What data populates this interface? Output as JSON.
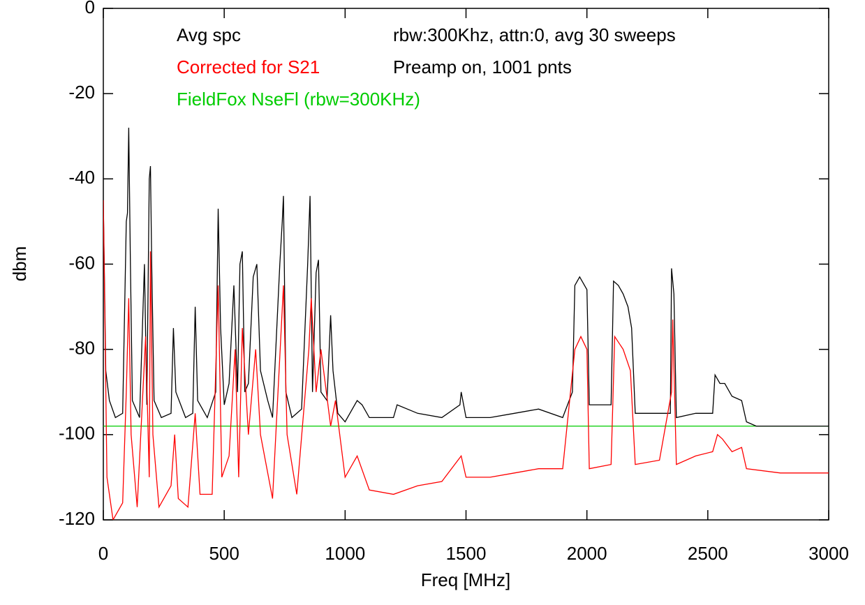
{
  "chart_data": {
    "type": "line",
    "xlabel": "Freq [MHz]",
    "ylabel": "dbm",
    "xlim": [
      0,
      3000
    ],
    "ylim": [
      -120,
      0
    ],
    "xticks": [
      0,
      500,
      1000,
      1500,
      2000,
      2500,
      3000
    ],
    "yticks": [
      -120,
      -100,
      -80,
      -60,
      -40,
      -20,
      0
    ],
    "annotations": [
      "rbw:300Khz, attn:0, avg 30 sweeps",
      "Preamp  on, 1001 pnts"
    ],
    "series": [
      {
        "name": "Avg spc",
        "color": "#000000",
        "x": [
          0,
          10,
          25,
          50,
          80,
          95,
          100,
          105,
          112,
          120,
          150,
          170,
          180,
          190,
          195,
          200,
          210,
          240,
          280,
          290,
          300,
          340,
          370,
          380,
          390,
          430,
          465,
          475,
          485,
          500,
          520,
          540,
          555,
          565,
          575,
          585,
          600,
          620,
          635,
          650,
          680,
          700,
          730,
          740,
          745,
          755,
          780,
          820,
          845,
          855,
          865,
          880,
          890,
          900,
          925,
          940,
          950,
          970,
          1000,
          1050,
          1070,
          1100,
          1200,
          1215,
          1300,
          1400,
          1475,
          1480,
          1500,
          1600,
          1700,
          1800,
          1900,
          1940,
          1950,
          1970,
          2000,
          2010,
          2100,
          2110,
          2130,
          2150,
          2170,
          2185,
          2200,
          2300,
          2345,
          2350,
          2360,
          2370,
          2450,
          2520,
          2530,
          2550,
          2570,
          2600,
          2640,
          2660,
          2700,
          3000
        ],
        "values": [
          -45,
          -85,
          -92,
          -96,
          -95,
          -50,
          -48,
          -28,
          -60,
          -92,
          -96,
          -60,
          -93,
          -40,
          -37,
          -60,
          -92,
          -96,
          -95,
          -75,
          -90,
          -96,
          -95,
          -70,
          -92,
          -96,
          -90,
          -47,
          -75,
          -93,
          -88,
          -65,
          -90,
          -60,
          -57,
          -90,
          -88,
          -63,
          -60,
          -85,
          -92,
          -96,
          -60,
          -50,
          -44,
          -90,
          -96,
          -94,
          -60,
          -44,
          -90,
          -62,
          -59,
          -90,
          -92,
          -72,
          -85,
          -95,
          -97,
          -92,
          -93,
          -96,
          -96,
          -93,
          -95,
          -96,
          -93,
          -90,
          -96,
          -96,
          -95,
          -94,
          -96,
          -90,
          -65,
          -63,
          -66,
          -93,
          -93,
          -64,
          -65,
          -67,
          -70,
          -75,
          -95,
          -95,
          -95,
          -61,
          -67,
          -96,
          -95,
          -95,
          -86,
          -88,
          -88,
          -91,
          -92,
          -97,
          -98,
          -98
        ]
      },
      {
        "name": "Corrected for S21",
        "color": "#ff0000",
        "x": [
          0,
          15,
          40,
          80,
          95,
          105,
          115,
          140,
          175,
          190,
          195,
          205,
          230,
          280,
          295,
          310,
          350,
          380,
          400,
          450,
          475,
          490,
          520,
          545,
          560,
          575,
          600,
          630,
          650,
          700,
          745,
          760,
          800,
          850,
          860,
          880,
          900,
          940,
          960,
          1000,
          1050,
          1100,
          1200,
          1300,
          1400,
          1480,
          1500,
          1600,
          1700,
          1800,
          1900,
          1950,
          1975,
          2000,
          2010,
          2100,
          2115,
          2150,
          2180,
          2200,
          2300,
          2350,
          2355,
          2370,
          2450,
          2520,
          2540,
          2560,
          2600,
          2640,
          2660,
          2800,
          3000
        ],
        "values": [
          -45,
          -110,
          -120,
          -116,
          -90,
          -68,
          -100,
          -117,
          -77,
          -110,
          -57,
          -100,
          -117,
          -112,
          -100,
          -115,
          -117,
          -95,
          -114,
          -114,
          -65,
          -110,
          -105,
          -80,
          -110,
          -75,
          -100,
          -80,
          -100,
          -115,
          -65,
          -100,
          -114,
          -80,
          -68,
          -90,
          -80,
          -98,
          -92,
          -110,
          -105,
          -113,
          -114,
          -112,
          -111,
          -105,
          -110,
          -110,
          -109,
          -108,
          -108,
          -80,
          -77,
          -80,
          -108,
          -107,
          -77,
          -80,
          -85,
          -107,
          -106,
          -90,
          -73,
          -107,
          -105,
          -104,
          -100,
          -101,
          -104,
          -103,
          -108,
          -109,
          -109
        ]
      },
      {
        "name": "FieldFox NseFl (rbw=300KHz)",
        "color": "#00cc00",
        "x": [
          0,
          3000
        ],
        "values": [
          -98,
          -98
        ]
      }
    ]
  }
}
